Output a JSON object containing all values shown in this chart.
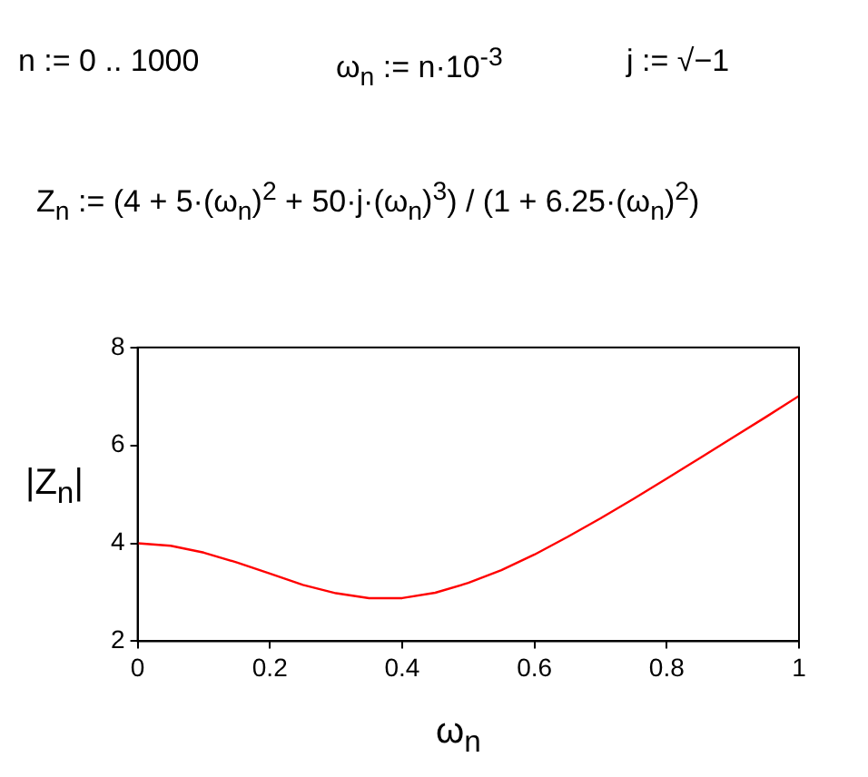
{
  "chart_data": {
    "type": "line",
    "xlabel": "ω$_{n}$",
    "ylabel": "|Z$_{n}$|",
    "annotations": [
      "n := 0 .. 1000",
      "ω$_{n}$ := n·10$^{-3}$",
      "j := √−1",
      "Z$_{n}$ := (4 + 5·(ω$_{n}$)$^{2}$ + 50·j·(ω$_{n}$)$^{3}$) / (1 + 6.25·(ω$_{n}$)$^{2}$)"
    ],
    "series": [
      {
        "color": "#ff0000",
        "x": [
          0,
          0.05,
          0.1,
          0.15,
          0.2,
          0.25,
          0.3,
          0.35,
          0.4,
          0.45,
          0.5,
          0.55,
          0.6,
          0.65,
          0.7,
          0.75,
          0.8,
          0.85,
          0.9,
          0.95,
          1
        ],
        "values": [
          4,
          3.95,
          3.81,
          3.61,
          3.38,
          3.15,
          2.98,
          2.88,
          2.88,
          2.99,
          3.19,
          3.45,
          3.77,
          4.13,
          4.51,
          4.91,
          5.32,
          5.74,
          6.16,
          6.58,
          7.01
        ]
      }
    ],
    "xlim": [
      0,
      1
    ],
    "xticks": [
      0,
      0.2,
      0.4,
      0.6,
      0.8,
      1
    ],
    "ylim": [
      2,
      8
    ],
    "yticks": [
      2,
      4,
      6,
      8
    ],
    "grid": false,
    "legend": false,
    "marker": "none",
    "line_style": "solid"
  }
}
